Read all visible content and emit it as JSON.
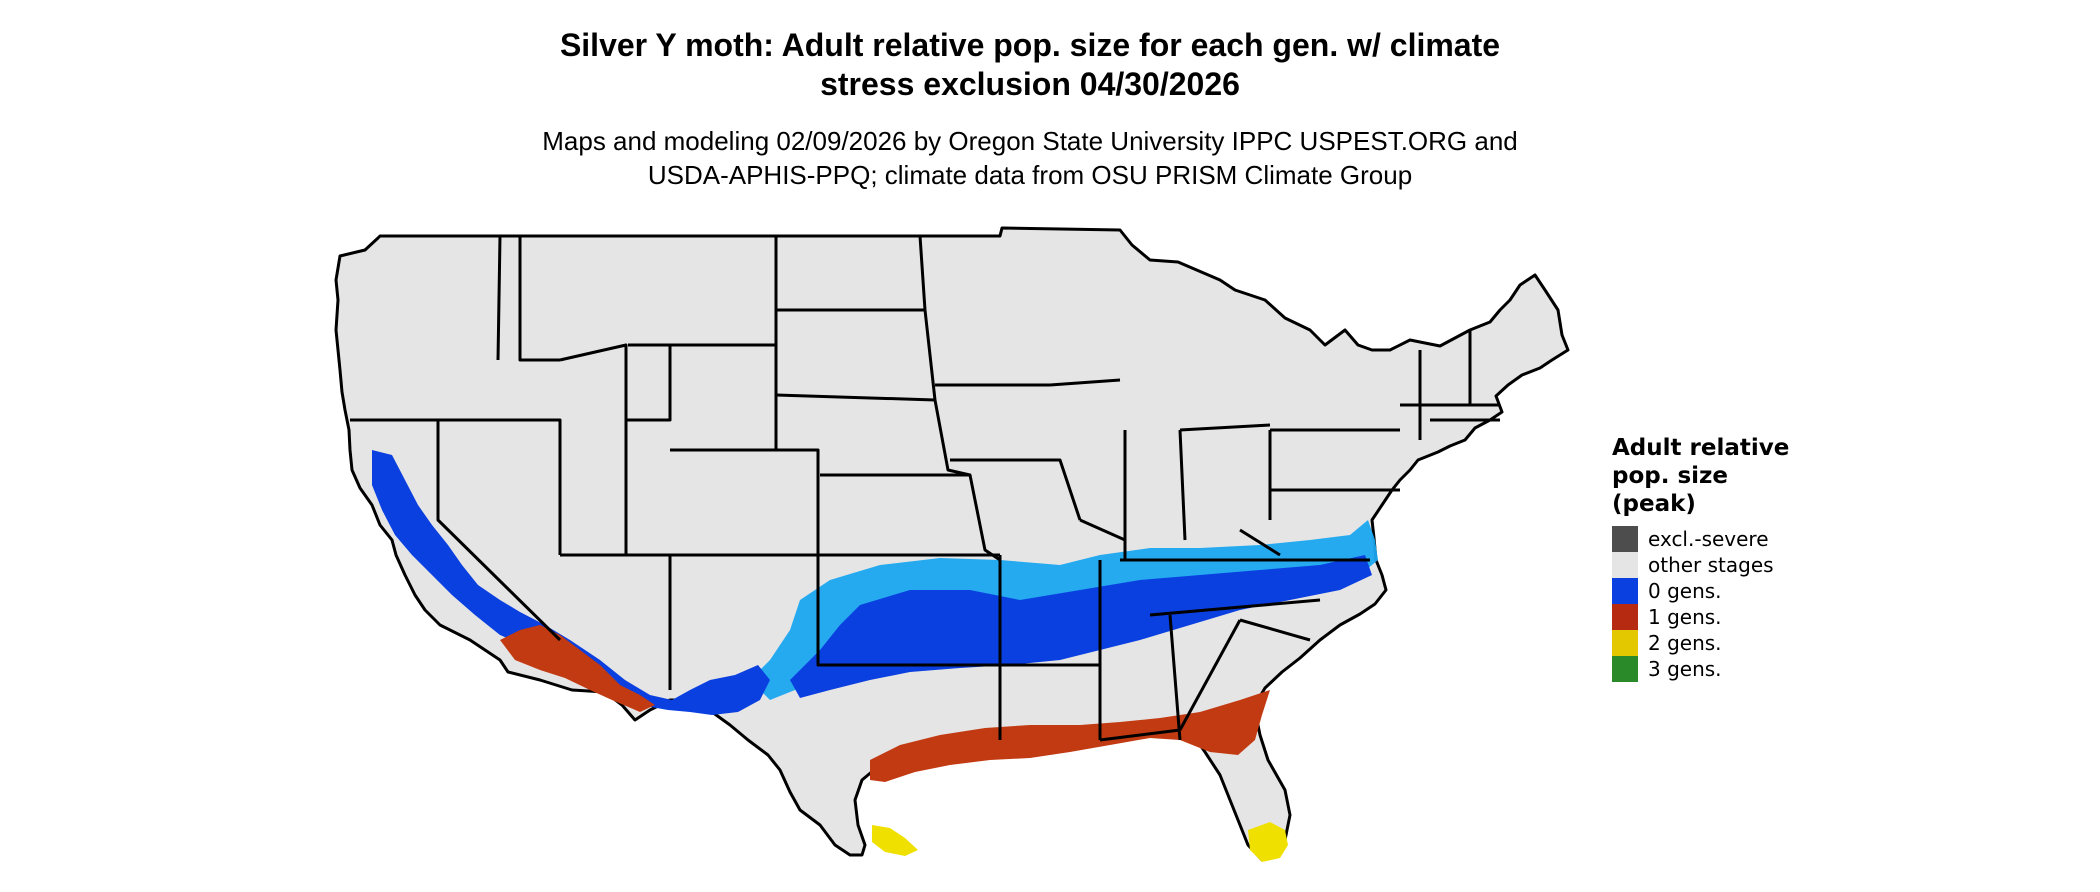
{
  "header": {
    "title_line1": "Silver Y moth: Adult relative pop. size for each gen. w/ climate",
    "title_line2": "stress exclusion 04/30/2026",
    "subtitle_line1": "Maps and modeling 02/09/2026 by Oregon State University IPPC USPEST.ORG and",
    "subtitle_line2": "USDA-APHIS-PPQ; climate data from OSU PRISM Climate Group"
  },
  "legend": {
    "title_line1": "Adult relative",
    "title_line2": "pop. size",
    "title_line3": "(peak)",
    "items": [
      {
        "label": "excl.-severe",
        "color": "#4d4d4d"
      },
      {
        "label": "other stages",
        "color": "#e5e5e5"
      },
      {
        "label": "0 gens.",
        "color": "#0a3fe0"
      },
      {
        "label": "1 gens.",
        "color": "#b52a10"
      },
      {
        "label": "2 gens.",
        "color": "#e3c800"
      },
      {
        "label": "3 gens.",
        "color": "#2a8a2a"
      }
    ]
  },
  "colors": {
    "land": "#e5e5e5",
    "border": "#000000",
    "zero_gens_dark": "#0a3fe0",
    "zero_gens_light": "#1aa7f0",
    "one_gens": "#c23a12",
    "two_gens": "#f0e000"
  }
}
